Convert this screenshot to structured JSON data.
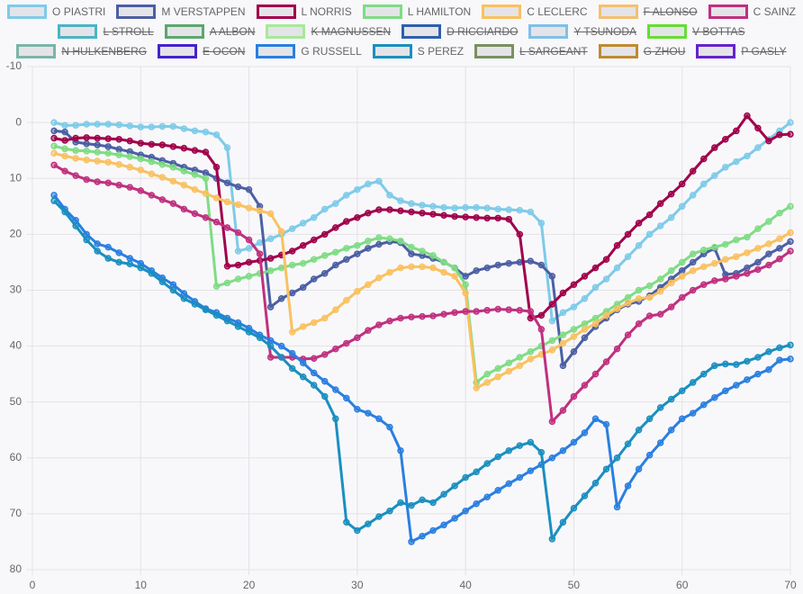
{
  "chart_data": {
    "type": "line",
    "x": [
      2,
      3,
      4,
      5,
      6,
      7,
      8,
      9,
      10,
      11,
      12,
      13,
      14,
      15,
      16,
      17,
      18,
      19,
      20,
      21,
      22,
      23,
      24,
      25,
      26,
      27,
      28,
      29,
      30,
      31,
      32,
      33,
      34,
      35,
      36,
      37,
      38,
      39,
      40,
      41,
      42,
      43,
      44,
      45,
      46,
      47,
      48,
      49,
      50,
      51,
      52,
      53,
      54,
      55,
      56,
      57,
      58,
      59,
      60,
      61,
      62,
      63,
      64,
      65,
      66,
      67,
      68,
      69,
      70
    ],
    "xlim": [
      0,
      70
    ],
    "xticks": [
      0,
      10,
      20,
      30,
      40,
      50,
      60,
      70
    ],
    "ylim": [
      -10,
      80
    ],
    "yticks": [
      -10,
      0,
      10,
      20,
      30,
      40,
      50,
      60,
      70,
      80
    ],
    "y_reversed": true,
    "grid": true,
    "legend": "top",
    "series": [
      {
        "name": "O PIASTRI",
        "color": "#7ecbe8",
        "values": [
          0,
          0.5,
          0.5,
          0.3,
          0.3,
          0.3,
          0.4,
          0.6,
          0.8,
          0.8,
          0.7,
          0.7,
          1.1,
          1.5,
          1.7,
          2.2,
          4.5,
          23,
          22.5,
          21.5,
          20.8,
          20,
          19,
          18,
          17,
          15.5,
          14.5,
          13,
          12,
          11,
          10.5,
          13,
          14,
          14.5,
          14.8,
          15,
          15.2,
          15.3,
          15.2,
          15.2,
          15.3,
          15.5,
          15.6,
          15.7,
          16,
          18,
          35.5,
          34,
          33,
          31.5,
          29.5,
          28,
          26,
          24,
          22,
          20,
          18.5,
          17,
          15,
          13,
          11,
          9.5,
          8,
          7,
          6,
          4.5,
          3,
          1.5,
          0
        ]
      },
      {
        "name": "M VERSTAPPEN",
        "color": "#4b5fa3",
        "values": [
          1.5,
          1.7,
          3.5,
          3.8,
          4,
          4.3,
          4.8,
          5.2,
          5.8,
          6.2,
          6.8,
          7.3,
          8,
          8.5,
          9,
          10,
          10.8,
          11.5,
          12,
          15,
          33,
          31.5,
          30.5,
          29.5,
          28,
          27,
          25.5,
          24.5,
          23.5,
          22.5,
          21.8,
          21.3,
          21.5,
          23.5,
          23.8,
          24.3,
          25,
          26,
          27.5,
          26.5,
          26,
          25.5,
          25.2,
          25,
          24.8,
          25.5,
          27.5,
          43.5,
          41,
          38.5,
          36.5,
          35,
          33.5,
          32.5,
          32,
          31,
          29.5,
          28,
          26.5,
          25,
          23.5,
          22.5,
          27.2,
          27,
          26,
          25,
          23.5,
          22.5,
          21.3
        ]
      },
      {
        "name": "L NORRIS",
        "color": "#a0004a",
        "values": [
          2.8,
          3.2,
          2.8,
          2.7,
          2.8,
          2.9,
          3,
          3.3,
          3.7,
          3.9,
          4,
          4.3,
          4.6,
          5,
          5.3,
          8,
          25.7,
          25.5,
          25,
          24.7,
          24.3,
          23.7,
          23,
          22,
          21,
          20,
          18.8,
          17.7,
          17,
          16.2,
          15.6,
          15.6,
          15.8,
          16,
          16.2,
          16.4,
          16.6,
          16.8,
          16.9,
          17,
          17.1,
          17.1,
          17.3,
          20,
          35,
          34.5,
          32.5,
          30.5,
          29,
          27.5,
          26,
          24.5,
          22,
          20,
          18,
          16.5,
          14.5,
          12.8,
          11,
          8.7,
          6.5,
          4.5,
          3,
          1.5,
          -1.2,
          1,
          3.3,
          2.2,
          2.1
        ]
      },
      {
        "name": "L HAMILTON",
        "color": "#7fdc84",
        "values": [
          4.2,
          4.7,
          5,
          5.1,
          5.3,
          5.5,
          5.8,
          6.1,
          6.5,
          7,
          7.5,
          8,
          8.7,
          9.3,
          10,
          29.3,
          28.7,
          28,
          27.5,
          27,
          26.5,
          26,
          25.5,
          25.2,
          24.5,
          23.8,
          23.2,
          22.5,
          22,
          21.2,
          20.6,
          20.8,
          21.2,
          22.3,
          23,
          23.8,
          25,
          26,
          29,
          46.5,
          45,
          44,
          43,
          42,
          41,
          40,
          39,
          38,
          37,
          36,
          35,
          33.8,
          32.5,
          31.3,
          30,
          29.2,
          28,
          26.5,
          25,
          23.5,
          22.8,
          22.3,
          21.8,
          21,
          20.5,
          19,
          17.7,
          16.2,
          15
        ]
      },
      {
        "name": "C LECLERC",
        "color": "#f9c160",
        "values": [
          5.5,
          6,
          6.4,
          6.7,
          6.9,
          7.1,
          7.5,
          8,
          8.5,
          9.2,
          9.8,
          10.5,
          11.2,
          12,
          12.7,
          13.5,
          14.2,
          14.7,
          15.3,
          15.8,
          16.3,
          19.5,
          37.5,
          36.5,
          35.8,
          35,
          33.5,
          31.8,
          30.2,
          29,
          27.8,
          26.8,
          26,
          25.8,
          25.8,
          26,
          26.8,
          27.5,
          30.5,
          47.5,
          46.5,
          45.5,
          44.5,
          43.5,
          42.3,
          41.5,
          40.7,
          39.5,
          38.3,
          37,
          36,
          34.5,
          33.3,
          32.3,
          31.5,
          31.3,
          30.2,
          28.7,
          27.5,
          26.5,
          25.8,
          25.2,
          24.5,
          24,
          23.3,
          22.5,
          21.7,
          20.8,
          19.7
        ]
      },
      {
        "name": "F ALONSO",
        "color": "#f5c070",
        "hidden": true
      },
      {
        "name": "C SAINZ",
        "color": "#c0307f",
        "values": [
          7.6,
          8.7,
          9.5,
          10.2,
          10.6,
          10.8,
          11.2,
          11.6,
          12.2,
          13,
          13.8,
          14.5,
          15.5,
          16.3,
          17,
          17.8,
          18.8,
          19.7,
          21,
          23.5,
          42,
          42,
          42,
          42.3,
          42.2,
          41.5,
          40.5,
          39.5,
          38.5,
          37.2,
          36.2,
          35.5,
          35,
          34.8,
          34.7,
          34.6,
          34.3,
          34,
          33.8,
          33.8,
          33.6,
          33.4,
          33.5,
          33.6,
          33.8,
          37,
          53.5,
          51.5,
          49,
          47,
          45,
          42.8,
          40.5,
          38,
          36,
          34.6,
          34.3,
          33,
          31.3,
          30,
          29,
          28.3,
          28,
          27.5,
          27,
          26.3,
          25.5,
          24.4,
          23
        ]
      },
      {
        "name": "L STROLL",
        "color": "#4ab5c4",
        "hidden": true
      },
      {
        "name": "A ALBON",
        "color": "#5aa86e",
        "hidden": true
      },
      {
        "name": "K MAGNUSSEN",
        "color": "#a8e89a",
        "hidden": true
      },
      {
        "name": "D RICCIARDO",
        "color": "#2e5fae",
        "hidden": true
      },
      {
        "name": "Y TSUNODA",
        "color": "#7ec0e8",
        "hidden": true
      },
      {
        "name": "V BOTTAS",
        "color": "#66dd33",
        "hidden": true
      },
      {
        "name": "N HULKENBERG",
        "color": "#7bb5a8",
        "hidden": true
      },
      {
        "name": "E OCON",
        "color": "#4422cc",
        "hidden": true
      },
      {
        "name": "G RUSSELL",
        "color": "#2a7fe0",
        "values": [
          13,
          15.5,
          17.5,
          20,
          21.7,
          22.3,
          23.3,
          24.3,
          25.2,
          26.5,
          27.8,
          29,
          30.6,
          32,
          33.3,
          34,
          35,
          35.8,
          36.8,
          38,
          39,
          40,
          41.3,
          43,
          44.8,
          46.3,
          47.8,
          49.3,
          51.3,
          52,
          53,
          54.5,
          58.7,
          75,
          74,
          73,
          72,
          70.8,
          69.5,
          68.2,
          67,
          65.8,
          64.6,
          63.5,
          62.3,
          61.2,
          60,
          58.7,
          57.2,
          55.5,
          53,
          54,
          68.8,
          65,
          62,
          59.5,
          57.3,
          55,
          53,
          52,
          50.5,
          49.2,
          48,
          47,
          46,
          45,
          44.2,
          42.5,
          42.3
        ]
      },
      {
        "name": "S PEREZ",
        "color": "#1a8fbf",
        "values": [
          14,
          16,
          18.5,
          21,
          23,
          24.3,
          25,
          25.3,
          26,
          27,
          28.5,
          30,
          31.5,
          32.5,
          33.5,
          34.5,
          35.5,
          36.5,
          37.5,
          38.5,
          40,
          42,
          44,
          45.5,
          47,
          49,
          53,
          71.5,
          73,
          71.8,
          70.5,
          69.5,
          68,
          68.5,
          67.5,
          68,
          66.5,
          65,
          63.5,
          62.5,
          61,
          59.8,
          58.7,
          57.8,
          57.2,
          59,
          74.5,
          71.5,
          69,
          66.8,
          64.5,
          62,
          60,
          57.5,
          55,
          53,
          51,
          49.5,
          48,
          46.5,
          45,
          43.5,
          43.2,
          43.3,
          42.7,
          42,
          41,
          40.3,
          39.8
        ]
      },
      {
        "name": "L SARGEANT",
        "color": "#7a9060",
        "hidden": true
      },
      {
        "name": "G ZHOU",
        "color": "#c08a30",
        "hidden": true
      },
      {
        "name": "P GASLY",
        "color": "#6622cc",
        "hidden": true
      }
    ]
  }
}
